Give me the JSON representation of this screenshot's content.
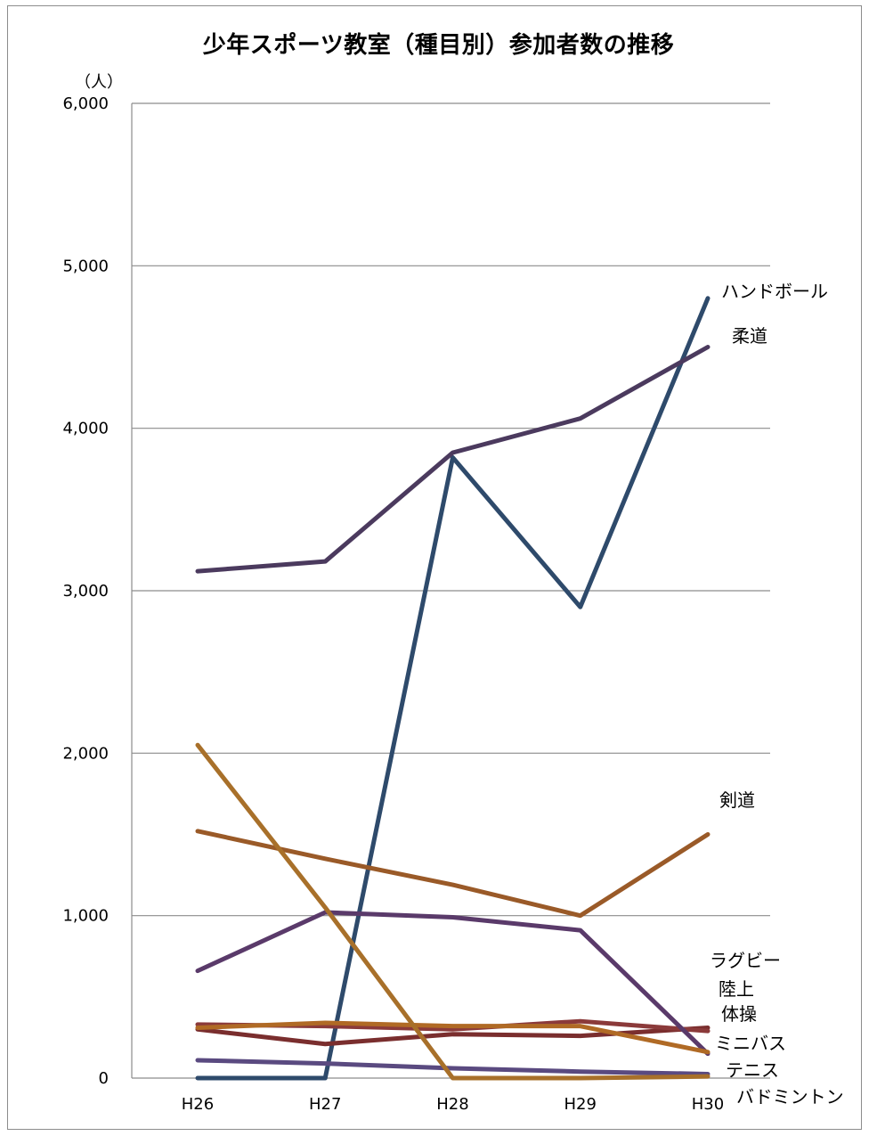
{
  "chart_data": {
    "type": "line",
    "title": "少年スポーツ教室（種目別）参加者数の推移",
    "unit": "（人）",
    "categories": [
      "H26",
      "H27",
      "H28",
      "H29",
      "H30"
    ],
    "ylim": [
      0,
      6000
    ],
    "yticks": [
      0,
      1000,
      2000,
      3000,
      4000,
      5000,
      6000
    ],
    "ytick_labels": [
      "0",
      "1,000",
      "2,000",
      "3,000",
      "4,000",
      "5,000",
      "6,000"
    ],
    "grid": true,
    "legend": "direct labels at right end",
    "series": [
      {
        "name": "ハンドボール",
        "color": "#2e4a6b",
        "values": [
          0,
          0,
          3820,
          2900,
          4800
        ]
      },
      {
        "name": "柔道",
        "color": "#4b3a5e",
        "values": [
          3120,
          3180,
          3850,
          4060,
          4500
        ]
      },
      {
        "name": "剣道",
        "color": "#9a5a28",
        "values": [
          1520,
          1350,
          1190,
          1000,
          1500
        ]
      },
      {
        "name": "ラグビー",
        "color": "#7a2e2e",
        "values": [
          300,
          210,
          270,
          260,
          310
        ]
      },
      {
        "name": "陸上",
        "color": "#8b3a3a",
        "values": [
          330,
          320,
          300,
          350,
          290
        ]
      },
      {
        "name": "体操",
        "color": "#5a3a6a",
        "values": [
          660,
          1020,
          990,
          910,
          150
        ]
      },
      {
        "name": "ミニバス",
        "color": "#b06a25",
        "values": [
          310,
          340,
          320,
          320,
          160
        ]
      },
      {
        "name": "テニス",
        "color": "#5a4a80",
        "values": [
          110,
          90,
          60,
          40,
          25
        ]
      },
      {
        "name": "バドミントン",
        "color": "#a8702a",
        "values": [
          2050,
          1050,
          0,
          0,
          10
        ]
      }
    ],
    "label_order": [
      "ハンドボール",
      "柔道",
      "剣道",
      "ラグビー",
      "陸上",
      "体操",
      "ミニバス",
      "テニス",
      "バドミントン"
    ]
  }
}
